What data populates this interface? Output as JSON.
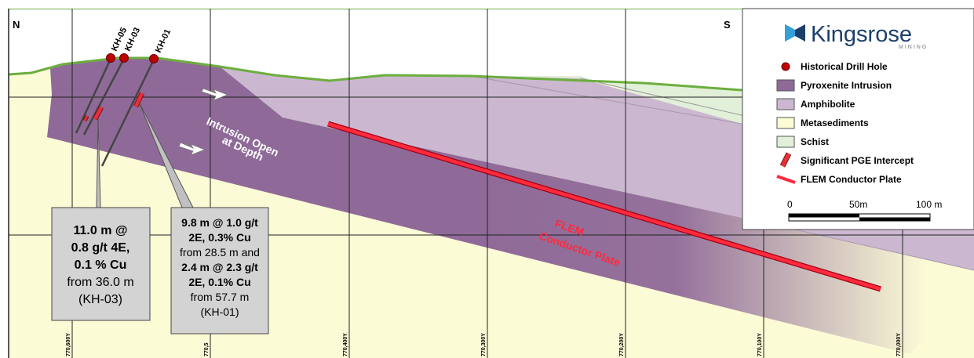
{
  "orientation": {
    "north": "N",
    "south": "S"
  },
  "drill_holes": [
    {
      "id": "KH-05"
    },
    {
      "id": "KH-03"
    },
    {
      "id": "KH-01"
    }
  ],
  "annotations": {
    "intrusion_open": [
      "Intrusion Open",
      "at Depth"
    ],
    "flem_plate": [
      "FLEM",
      "Conductor Plate"
    ]
  },
  "callouts": {
    "kh03": {
      "lines": [
        {
          "text": "11.0 m @",
          "bold": true
        },
        {
          "text": "0.8 g/t 4E,",
          "bold": true
        },
        {
          "text": "0.1 % Cu",
          "bold": true
        },
        {
          "text": "from 36.0 m",
          "bold": false
        },
        {
          "text": "(KH-03)",
          "bold": false
        }
      ]
    },
    "kh01": {
      "lines": [
        {
          "text": "9.8 m @ 1.0 g/t",
          "bold": true
        },
        {
          "text": "2E, 0.3% Cu",
          "bold": true
        },
        {
          "text": "from 28.5 m and",
          "bold": false
        },
        {
          "text": "2.4 m @ 2.3 g/t",
          "bold": true
        },
        {
          "text": "2E, 0.1% Cu",
          "bold": true
        },
        {
          "text": "from 57.7 m",
          "bold": false
        },
        {
          "text": "(KH-01)",
          "bold": false
        }
      ]
    }
  },
  "grid_labels": [
    "770,600Y",
    "770,5",
    "770,400Y",
    "770,300Y",
    "770,200Y",
    "770,100Y",
    "770,000Y"
  ],
  "legend": {
    "logo_text": "Kingsrose",
    "logo_sub": "MINING",
    "items": [
      {
        "label": "Historical Drill Hole",
        "symbol": "dot",
        "color": "#c00000"
      },
      {
        "label": "Pyroxenite Intrusion",
        "symbol": "box",
        "color": "#8f6a98"
      },
      {
        "label": "Amphibolite",
        "symbol": "box",
        "color": "#cbb8d0"
      },
      {
        "label": "Metasediments",
        "symbol": "box",
        "color": "#fbfbd6"
      },
      {
        "label": "Schist",
        "symbol": "box",
        "color": "#e2efd9"
      },
      {
        "label": "Significant PGE Intercept",
        "symbol": "intercept",
        "color": "#e8303a"
      },
      {
        "label": "FLEM Conductor Plate",
        "symbol": "plate",
        "color": "#ff2a3d"
      }
    ],
    "scale": {
      "labels": [
        "0",
        "50m",
        "100  m"
      ]
    }
  },
  "colors": {
    "metasediments": "#fbfbd6",
    "pyroxenite": "#8f6a98",
    "amphibolite": "#cbb8d0",
    "schist": "#e2efd9",
    "topography": "#6cae3e",
    "plate": "#ff2a3d",
    "intercept": "#e8303a",
    "drill_dot": "#c00000",
    "callout_fill": "#d3d3d3"
  }
}
